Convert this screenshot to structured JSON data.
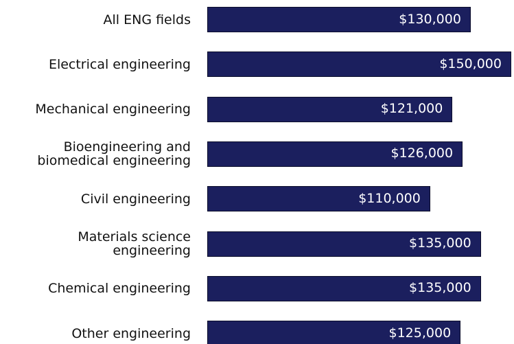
{
  "chart_data": {
    "type": "bar",
    "orientation": "horizontal",
    "categories": [
      "All ENG fields",
      "Electrical engineering",
      "Mechanical engineering",
      "Bioengineering and\nbiomedical engineering",
      "Civil engineering",
      "Materials science\nengineering",
      "Chemical engineering",
      "Other engineering"
    ],
    "values": [
      130000,
      150000,
      121000,
      126000,
      110000,
      135000,
      135000,
      125000
    ],
    "value_labels": [
      "$130,000",
      "$150,000",
      "$121,000",
      "$126,000",
      "$110,000",
      "$135,000",
      "$135,000",
      "$125,000"
    ],
    "color": "#1b1f5e"
  }
}
